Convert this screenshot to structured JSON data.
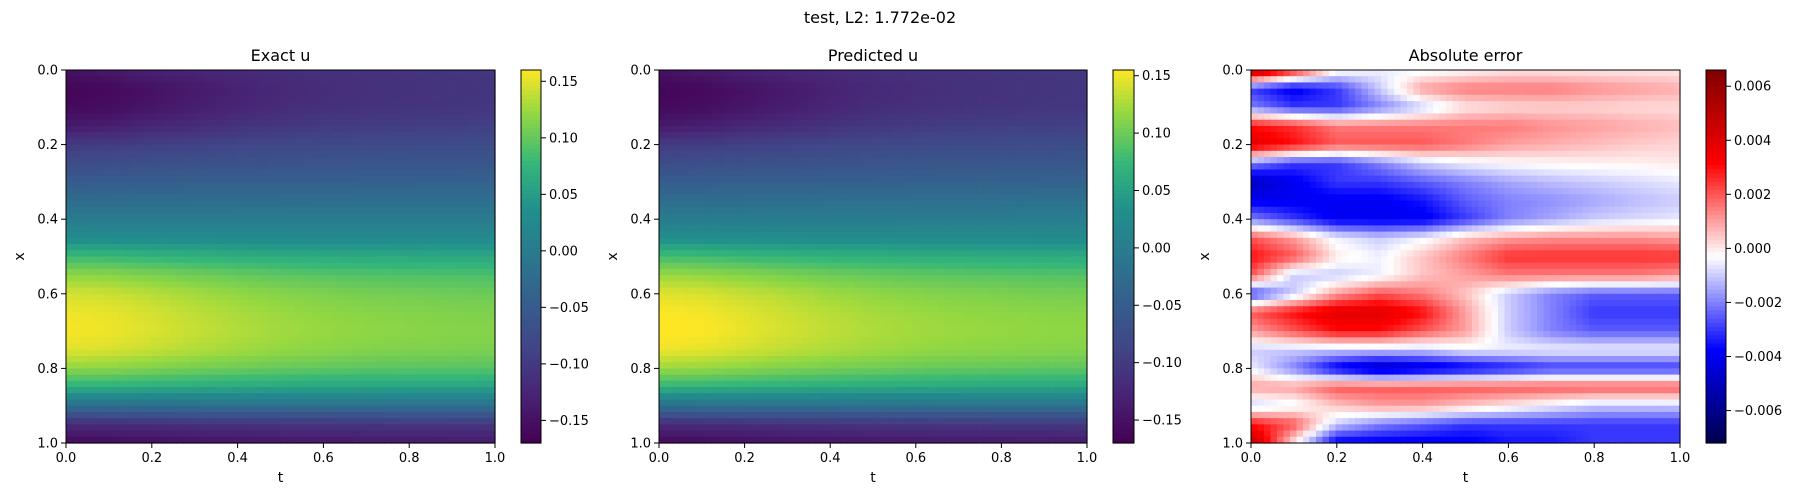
{
  "suptitle": "test, L2: 1.772e-02",
  "chart_data": [
    {
      "type": "heatmap",
      "title": "Exact u",
      "xlabel": "t",
      "ylabel": "x",
      "xlim": [
        0.0,
        1.0
      ],
      "ylim": [
        0.0,
        1.0
      ],
      "y_inverted": true,
      "xticks": [
        "0.0",
        "0.2",
        "0.4",
        "0.6",
        "0.8",
        "1.0"
      ],
      "yticks": [
        "0.0",
        "0.2",
        "0.4",
        "0.6",
        "0.8",
        "1.0"
      ],
      "colormap": "viridis",
      "colorbar": {
        "range": [
          -0.17,
          0.16
        ],
        "ticks": [
          0.15,
          0.1,
          0.05,
          0.0,
          -0.05,
          -0.1,
          -0.15
        ],
        "tick_labels": [
          "0.15",
          "0.10",
          "0.05",
          "0.00",
          "−0.05",
          "−0.10",
          "−0.15"
        ]
      },
      "x": [
        0.0,
        0.1,
        0.2,
        0.3,
        0.4,
        0.5,
        0.6,
        0.7,
        0.8,
        0.9,
        1.0
      ],
      "y": [
        0.0,
        0.05,
        0.1,
        0.15,
        0.2,
        0.25,
        0.3,
        0.35,
        0.4,
        0.45,
        0.5,
        0.55,
        0.6,
        0.65,
        0.7,
        0.75,
        0.8,
        0.85,
        0.9,
        0.95,
        1.0
      ],
      "z": [
        [
          -0.15,
          -0.14,
          -0.13,
          -0.125,
          -0.12,
          -0.115,
          -0.112,
          -0.11,
          -0.108,
          -0.106,
          -0.105
        ],
        [
          -0.165,
          -0.16,
          -0.15,
          -0.14,
          -0.13,
          -0.122,
          -0.116,
          -0.112,
          -0.11,
          -0.108,
          -0.106
        ],
        [
          -0.16,
          -0.155,
          -0.145,
          -0.135,
          -0.126,
          -0.118,
          -0.113,
          -0.11,
          -0.108,
          -0.106,
          -0.105
        ],
        [
          -0.14,
          -0.135,
          -0.125,
          -0.118,
          -0.11,
          -0.105,
          -0.1,
          -0.097,
          -0.095,
          -0.094,
          -0.093
        ],
        [
          -0.1,
          -0.098,
          -0.093,
          -0.09,
          -0.085,
          -0.082,
          -0.08,
          -0.078,
          -0.077,
          -0.076,
          -0.075
        ],
        [
          -0.075,
          -0.073,
          -0.07,
          -0.068,
          -0.066,
          -0.064,
          -0.062,
          -0.061,
          -0.06,
          -0.06,
          -0.059
        ],
        [
          -0.05,
          -0.049,
          -0.047,
          -0.046,
          -0.045,
          -0.044,
          -0.043,
          -0.042,
          -0.041,
          -0.041,
          -0.04
        ],
        [
          -0.025,
          -0.024,
          -0.023,
          -0.022,
          -0.021,
          -0.021,
          -0.02,
          -0.02,
          -0.02,
          -0.019,
          -0.019
        ],
        [
          0.0,
          0.0,
          0.0,
          0.0,
          0.0,
          0.0,
          0.0,
          0.0,
          0.0,
          0.0,
          0.0
        ],
        [
          0.03,
          0.029,
          0.028,
          0.027,
          0.026,
          0.026,
          0.025,
          0.025,
          0.025,
          0.024,
          0.024
        ],
        [
          0.08,
          0.078,
          0.074,
          0.071,
          0.068,
          0.066,
          0.064,
          0.063,
          0.062,
          0.061,
          0.06
        ],
        [
          0.12,
          0.117,
          0.112,
          0.106,
          0.101,
          0.097,
          0.094,
          0.092,
          0.09,
          0.089,
          0.088
        ],
        [
          0.145,
          0.142,
          0.135,
          0.128,
          0.121,
          0.116,
          0.112,
          0.109,
          0.107,
          0.105,
          0.104
        ],
        [
          0.155,
          0.152,
          0.145,
          0.137,
          0.13,
          0.124,
          0.12,
          0.117,
          0.115,
          0.113,
          0.112
        ],
        [
          0.158,
          0.155,
          0.148,
          0.14,
          0.133,
          0.127,
          0.123,
          0.12,
          0.118,
          0.116,
          0.115
        ],
        [
          0.15,
          0.147,
          0.14,
          0.133,
          0.127,
          0.122,
          0.118,
          0.115,
          0.113,
          0.112,
          0.111
        ],
        [
          0.12,
          0.118,
          0.113,
          0.108,
          0.104,
          0.101,
          0.098,
          0.096,
          0.095,
          0.094,
          0.093
        ],
        [
          0.07,
          0.069,
          0.066,
          0.064,
          0.062,
          0.06,
          0.059,
          0.058,
          0.057,
          0.057,
          0.056
        ],
        [
          -0.02,
          -0.02,
          -0.019,
          -0.019,
          -0.018,
          -0.018,
          -0.018,
          -0.017,
          -0.017,
          -0.017,
          -0.017
        ],
        [
          -0.12,
          -0.118,
          -0.115,
          -0.112,
          -0.11,
          -0.108,
          -0.107,
          -0.106,
          -0.105,
          -0.105,
          -0.104
        ],
        [
          -0.16,
          -0.158,
          -0.154,
          -0.15,
          -0.147,
          -0.145,
          -0.143,
          -0.142,
          -0.141,
          -0.14,
          -0.14
        ]
      ]
    },
    {
      "type": "heatmap",
      "title": "Predicted u",
      "xlabel": "t",
      "ylabel": "x",
      "xlim": [
        0.0,
        1.0
      ],
      "ylim": [
        0.0,
        1.0
      ],
      "y_inverted": true,
      "xticks": [
        "0.0",
        "0.2",
        "0.4",
        "0.6",
        "0.8",
        "1.0"
      ],
      "yticks": [
        "0.0",
        "0.2",
        "0.4",
        "0.6",
        "0.8",
        "1.0"
      ],
      "colormap": "viridis",
      "colorbar": {
        "range": [
          -0.17,
          0.155
        ],
        "ticks": [
          0.15,
          0.1,
          0.05,
          0.0,
          -0.05,
          -0.1,
          -0.15
        ],
        "tick_labels": [
          "0.15",
          "0.10",
          "0.05",
          "0.00",
          "−0.05",
          "−0.10",
          "−0.15"
        ]
      },
      "x": [
        0.0,
        0.1,
        0.2,
        0.3,
        0.4,
        0.5,
        0.6,
        0.7,
        0.8,
        0.9,
        1.0
      ],
      "y": [
        0.0,
        0.05,
        0.1,
        0.15,
        0.2,
        0.25,
        0.3,
        0.35,
        0.4,
        0.45,
        0.5,
        0.55,
        0.6,
        0.65,
        0.7,
        0.75,
        0.8,
        0.85,
        0.9,
        0.95,
        1.0
      ],
      "z": [
        [
          -0.15,
          -0.14,
          -0.13,
          -0.125,
          -0.12,
          -0.115,
          -0.112,
          -0.11,
          -0.108,
          -0.106,
          -0.105
        ],
        [
          -0.165,
          -0.16,
          -0.15,
          -0.14,
          -0.13,
          -0.122,
          -0.116,
          -0.112,
          -0.11,
          -0.108,
          -0.106
        ],
        [
          -0.16,
          -0.155,
          -0.145,
          -0.135,
          -0.126,
          -0.118,
          -0.113,
          -0.11,
          -0.108,
          -0.106,
          -0.105
        ],
        [
          -0.14,
          -0.135,
          -0.125,
          -0.118,
          -0.11,
          -0.105,
          -0.1,
          -0.097,
          -0.095,
          -0.094,
          -0.093
        ],
        [
          -0.1,
          -0.098,
          -0.093,
          -0.09,
          -0.085,
          -0.082,
          -0.08,
          -0.078,
          -0.077,
          -0.076,
          -0.075
        ],
        [
          -0.075,
          -0.073,
          -0.07,
          -0.068,
          -0.066,
          -0.064,
          -0.062,
          -0.061,
          -0.06,
          -0.06,
          -0.059
        ],
        [
          -0.05,
          -0.049,
          -0.047,
          -0.046,
          -0.045,
          -0.044,
          -0.043,
          -0.042,
          -0.041,
          -0.041,
          -0.04
        ],
        [
          -0.025,
          -0.024,
          -0.023,
          -0.022,
          -0.021,
          -0.021,
          -0.02,
          -0.02,
          -0.02,
          -0.019,
          -0.019
        ],
        [
          0.0,
          0.0,
          0.0,
          0.0,
          0.0,
          0.0,
          0.0,
          0.0,
          0.0,
          0.0,
          0.0
        ],
        [
          0.03,
          0.029,
          0.028,
          0.027,
          0.026,
          0.026,
          0.025,
          0.025,
          0.025,
          0.024,
          0.024
        ],
        [
          0.08,
          0.078,
          0.074,
          0.071,
          0.068,
          0.066,
          0.064,
          0.063,
          0.062,
          0.061,
          0.06
        ],
        [
          0.12,
          0.117,
          0.112,
          0.106,
          0.101,
          0.097,
          0.094,
          0.092,
          0.09,
          0.089,
          0.088
        ],
        [
          0.145,
          0.142,
          0.135,
          0.128,
          0.121,
          0.116,
          0.112,
          0.109,
          0.107,
          0.105,
          0.104
        ],
        [
          0.155,
          0.152,
          0.145,
          0.137,
          0.13,
          0.124,
          0.12,
          0.117,
          0.115,
          0.113,
          0.112
        ],
        [
          0.158,
          0.155,
          0.148,
          0.14,
          0.133,
          0.127,
          0.123,
          0.12,
          0.118,
          0.116,
          0.115
        ],
        [
          0.15,
          0.147,
          0.14,
          0.133,
          0.127,
          0.122,
          0.118,
          0.115,
          0.113,
          0.112,
          0.111
        ],
        [
          0.12,
          0.118,
          0.113,
          0.108,
          0.104,
          0.101,
          0.098,
          0.096,
          0.095,
          0.094,
          0.093
        ],
        [
          0.07,
          0.069,
          0.066,
          0.064,
          0.062,
          0.06,
          0.059,
          0.058,
          0.057,
          0.057,
          0.056
        ],
        [
          -0.02,
          -0.02,
          -0.019,
          -0.019,
          -0.018,
          -0.018,
          -0.018,
          -0.017,
          -0.017,
          -0.017,
          -0.017
        ],
        [
          -0.12,
          -0.118,
          -0.115,
          -0.112,
          -0.11,
          -0.108,
          -0.107,
          -0.106,
          -0.105,
          -0.105,
          -0.104
        ],
        [
          -0.16,
          -0.158,
          -0.154,
          -0.15,
          -0.147,
          -0.145,
          -0.143,
          -0.142,
          -0.141,
          -0.14,
          -0.14
        ]
      ]
    },
    {
      "type": "heatmap",
      "title": "Absolute error",
      "xlabel": "t",
      "ylabel": "x",
      "xlim": [
        0.0,
        1.0
      ],
      "ylim": [
        0.0,
        1.0
      ],
      "y_inverted": true,
      "xticks": [
        "0.0",
        "0.2",
        "0.4",
        "0.6",
        "0.8",
        "1.0"
      ],
      "yticks": [
        "0.0",
        "0.2",
        "0.4",
        "0.6",
        "0.8",
        "1.0"
      ],
      "colormap": "seismic",
      "colorbar": {
        "range": [
          -0.0072,
          0.0066
        ],
        "ticks": [
          0.006,
          0.004,
          0.002,
          0.0,
          -0.002,
          -0.004,
          -0.006
        ],
        "tick_labels": [
          "0.006",
          "0.004",
          "0.002",
          "0.000",
          "−0.002",
          "−0.004",
          "−0.006"
        ]
      },
      "x": [
        0.0,
        0.1,
        0.2,
        0.3,
        0.4,
        0.5,
        0.6,
        0.7,
        0.8,
        0.9,
        1.0
      ],
      "y": [
        0.0,
        0.05,
        0.1,
        0.15,
        0.2,
        0.25,
        0.3,
        0.35,
        0.4,
        0.45,
        0.5,
        0.55,
        0.6,
        0.65,
        0.7,
        0.75,
        0.8,
        0.85,
        0.9,
        0.95,
        1.0
      ],
      "z": [
        [
          0.0055,
          0.003,
          0.0,
          -0.0005,
          -0.0005,
          -0.0003,
          0.0,
          0.0,
          0.0,
          0.0,
          0.0
        ],
        [
          -0.003,
          -0.004,
          -0.003,
          -0.001,
          0.001,
          0.0015,
          0.0015,
          0.0015,
          0.0012,
          0.001,
          0.0008
        ],
        [
          -0.002,
          -0.003,
          -0.003,
          -0.002,
          -0.001,
          0.0,
          0.0002,
          0.0003,
          0.0003,
          0.0002,
          0.0002
        ],
        [
          0.003,
          0.0025,
          0.0015,
          0.0015,
          0.0015,
          0.0015,
          0.0015,
          0.0012,
          0.001,
          0.0008,
          0.0006
        ],
        [
          0.004,
          0.003,
          0.002,
          0.002,
          0.002,
          0.0015,
          0.001,
          0.0008,
          0.0006,
          0.0004,
          0.0003
        ],
        [
          -0.002,
          -0.003,
          -0.003,
          -0.002,
          -0.001,
          -0.0005,
          -0.0003,
          -0.0002,
          -0.0001,
          -0.0001,
          0.0
        ],
        [
          -0.005,
          -0.004,
          -0.003,
          -0.003,
          -0.0025,
          -0.002,
          -0.0015,
          -0.0012,
          -0.001,
          -0.0008,
          -0.0006
        ],
        [
          -0.004,
          -0.004,
          -0.004,
          -0.004,
          -0.0035,
          -0.0025,
          -0.002,
          -0.0018,
          -0.0015,
          -0.0012,
          -0.001
        ],
        [
          -0.002,
          -0.003,
          -0.004,
          -0.004,
          -0.004,
          -0.003,
          -0.002,
          -0.0015,
          -0.001,
          -0.0008,
          -0.0006
        ],
        [
          0.002,
          0.001,
          -0.0005,
          -0.001,
          -0.0005,
          0.0005,
          0.001,
          0.0012,
          0.0012,
          0.0012,
          0.001
        ],
        [
          0.003,
          0.002,
          0.0,
          -0.0005,
          0.0005,
          0.0015,
          0.0025,
          0.0025,
          0.0025,
          0.0025,
          0.0025
        ],
        [
          0.002,
          -0.001,
          -0.001,
          -0.0005,
          0.0005,
          0.001,
          0.0015,
          0.0015,
          0.0015,
          0.0015,
          0.0012
        ],
        [
          -0.003,
          -0.001,
          0.001,
          0.002,
          0.0015,
          0.0005,
          -0.001,
          -0.002,
          -0.0025,
          -0.0025,
          -0.0025
        ],
        [
          0.002,
          0.003,
          0.004,
          0.004,
          0.003,
          0.001,
          -0.001,
          -0.002,
          -0.003,
          -0.003,
          -0.003
        ],
        [
          0.001,
          0.002,
          0.003,
          0.003,
          0.002,
          0.001,
          -0.001,
          -0.002,
          -0.0025,
          -0.0025,
          -0.0025
        ],
        [
          -0.001,
          -0.001,
          -0.001,
          -0.001,
          -0.001,
          -0.0005,
          -0.0005,
          -0.0005,
          -0.0005,
          -0.0005,
          -0.0005
        ],
        [
          -0.0005,
          -0.002,
          -0.004,
          -0.005,
          -0.0045,
          -0.004,
          -0.0035,
          -0.003,
          -0.003,
          -0.003,
          -0.003
        ],
        [
          0.001,
          0.001,
          0.002,
          0.002,
          0.002,
          0.002,
          0.002,
          0.002,
          0.002,
          0.002,
          0.002
        ],
        [
          -0.001,
          -0.0005,
          0.0005,
          0.001,
          0.001,
          0.0005,
          0.0,
          -0.0005,
          -0.001,
          -0.001,
          -0.001
        ],
        [
          0.003,
          0.002,
          -0.001,
          -0.002,
          -0.0025,
          -0.003,
          -0.003,
          -0.003,
          -0.003,
          -0.003,
          -0.003
        ],
        [
          0.005,
          0.0,
          -0.004,
          -0.004,
          -0.004,
          -0.004,
          -0.0035,
          -0.0035,
          -0.003,
          -0.003,
          -0.003
        ]
      ]
    }
  ]
}
